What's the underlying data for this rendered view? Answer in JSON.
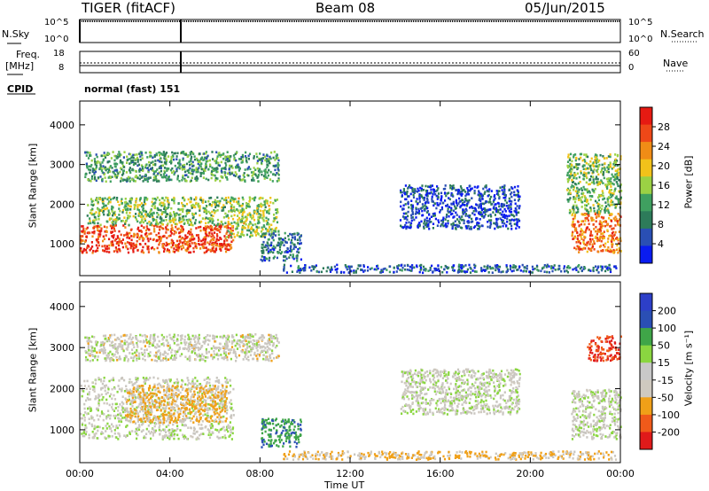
{
  "header": {
    "title": "TIGER (fitACF)",
    "beam": "Beam 08",
    "date": "05/Jun/2015"
  },
  "side_labels": {
    "nsky": "N.Sky",
    "nsearch": "N.Search",
    "freq_line1": "Freq.",
    "freq_line2": "[MHz]",
    "nave": "Nave",
    "cpid": "CPID",
    "cpid_value": "normal (fast) 151"
  },
  "small_panels": {
    "noise_ticks_left": [
      "10^5",
      "10^0"
    ],
    "noise_ticks_right": [
      "10^5",
      "10^0"
    ],
    "freq_ticks_left": [
      "18",
      "8"
    ],
    "nave_ticks_right": [
      "60",
      "0"
    ]
  },
  "colors": {
    "power": [
      "#0a1cf0",
      "#2a4fb4",
      "#2d7b5a",
      "#3fa060",
      "#9bd144",
      "#f2c21a",
      "#f08c16",
      "#ee4818",
      "#e61a12"
    ],
    "velocity": [
      "#e01a1a",
      "#f05a1a",
      "#f0a018",
      "#cfc9bf",
      "#c8c8c8",
      "#8ad640",
      "#3fa548",
      "#2a4fb4",
      "#2d3fc8"
    ],
    "velocity_gray": "#c9c6c0"
  },
  "chart_data": [
    {
      "type": "heatmap",
      "name": "power",
      "ylabel": "Slant Range [km]",
      "yticks": [
        "1000",
        "2000",
        "3000",
        "4000"
      ],
      "ylim": [
        200,
        4600
      ],
      "xlim": [
        0,
        24
      ],
      "colorbar_label": "Power [dB]",
      "colorbar_ticks": [
        "4",
        "8",
        "12",
        "16",
        "20",
        "24",
        "28"
      ],
      "colorbar_range": [
        0,
        30
      ],
      "regions": [
        {
          "t": [
            0.0,
            6.8
          ],
          "r": [
            800,
            1500
          ],
          "level": 0.85
        },
        {
          "t": [
            0.3,
            6.5
          ],
          "r": [
            1500,
            2200
          ],
          "level": 0.45
        },
        {
          "t": [
            0.2,
            8.8
          ],
          "r": [
            2600,
            3350
          ],
          "level": 0.35
        },
        {
          "t": [
            6.5,
            8.8
          ],
          "r": [
            1200,
            2200
          ],
          "level": 0.5
        },
        {
          "t": [
            8.0,
            9.8
          ],
          "r": [
            600,
            1300
          ],
          "level": 0.25
        },
        {
          "t": [
            14.2,
            19.5
          ],
          "r": [
            1400,
            2500
          ],
          "level": 0.15
        },
        {
          "t": [
            21.8,
            24.0
          ],
          "r": [
            800,
            1800
          ],
          "level": 0.75
        },
        {
          "t": [
            21.6,
            24.0
          ],
          "r": [
            1800,
            3300
          ],
          "level": 0.45
        },
        {
          "t": [
            9.0,
            23.8
          ],
          "r": [
            300,
            500
          ],
          "level": 0.2
        }
      ]
    },
    {
      "type": "heatmap",
      "name": "velocity",
      "ylabel": "Slant Range [km]",
      "yticks": [
        "1000",
        "2000",
        "3000",
        "4000"
      ],
      "ylim": [
        200,
        4600
      ],
      "xlim": [
        0,
        24
      ],
      "xticks": [
        "00:00",
        "04:00",
        "08:00",
        "12:00",
        "16:00",
        "20:00",
        "00:00"
      ],
      "xlabel": "Time UT",
      "colorbar_label": "Velocity [m s⁻¹]",
      "colorbar_ticks": [
        "200",
        "100",
        "50",
        "15",
        "-15",
        "-50",
        "-100",
        "-200"
      ],
      "colorbar_range": [
        -250,
        250
      ],
      "regions": [
        {
          "t": [
            0.0,
            6.8
          ],
          "r": [
            800,
            2300
          ],
          "v": 0
        },
        {
          "t": [
            2.0,
            6.5
          ],
          "r": [
            1200,
            2100
          ],
          "v": -40
        },
        {
          "t": [
            0.2,
            8.8
          ],
          "r": [
            2700,
            3350
          ],
          "v": -5
        },
        {
          "t": [
            8.0,
            9.8
          ],
          "r": [
            600,
            1300
          ],
          "v": 60
        },
        {
          "t": [
            14.2,
            19.5
          ],
          "r": [
            1400,
            2500
          ],
          "v": 0
        },
        {
          "t": [
            21.8,
            24.0
          ],
          "r": [
            800,
            2000
          ],
          "v": 0
        },
        {
          "t": [
            22.5,
            24.0
          ],
          "r": [
            2700,
            3300
          ],
          "v": -150
        },
        {
          "t": [
            9.0,
            23.8
          ],
          "r": [
            300,
            500
          ],
          "v": -30
        }
      ]
    }
  ]
}
